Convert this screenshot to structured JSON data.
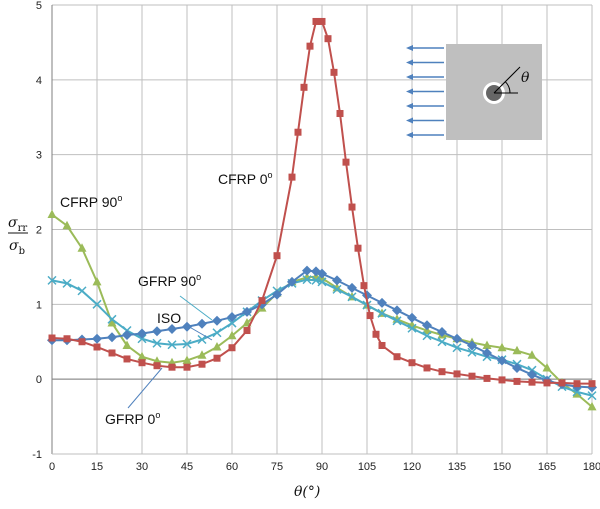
{
  "chart_data": {
    "type": "line",
    "xlabel": "θ(°)",
    "ylabel": "σrr / σb",
    "ylabel_num": "σ",
    "ylabel_num_sub": "rr",
    "ylabel_den": "σ",
    "ylabel_den_sub": "b",
    "xlim": [
      0,
      180
    ],
    "ylim": [
      -1,
      5
    ],
    "xticks": [
      "0",
      "15",
      "30",
      "45",
      "60",
      "75",
      "90",
      "105",
      "120",
      "135",
      "150",
      "165",
      "180"
    ],
    "yticks": [
      "-1",
      "0",
      "1",
      "2",
      "3",
      "4",
      "5"
    ],
    "grid": true,
    "inset": {
      "angle_label": "θ"
    },
    "series": [
      {
        "name": "CFRP 0o",
        "label_text": "CFRP 0",
        "label_sup": "o",
        "color": "#c0504d",
        "marker": "square",
        "x": [
          0,
          5,
          10,
          15,
          20,
          25,
          30,
          35,
          40,
          45,
          50,
          55,
          60,
          65,
          70,
          75,
          80,
          82,
          84,
          86,
          88,
          90,
          92,
          94,
          96,
          98,
          100,
          102,
          104,
          106,
          108,
          110,
          115,
          120,
          125,
          130,
          135,
          140,
          145,
          150,
          155,
          160,
          165,
          170,
          175,
          180
        ],
        "y": [
          0.55,
          0.54,
          0.5,
          0.43,
          0.35,
          0.27,
          0.22,
          0.18,
          0.16,
          0.16,
          0.2,
          0.28,
          0.42,
          0.65,
          1.05,
          1.65,
          2.7,
          3.3,
          3.9,
          4.45,
          4.78,
          4.78,
          4.55,
          4.1,
          3.55,
          2.9,
          2.3,
          1.75,
          1.25,
          0.85,
          0.6,
          0.45,
          0.3,
          0.22,
          0.15,
          0.1,
          0.07,
          0.04,
          0.01,
          -0.01,
          -0.03,
          -0.04,
          -0.05,
          -0.05,
          -0.06,
          -0.06
        ]
      },
      {
        "name": "CFRP 90o",
        "label_text": "CFRP 90",
        "label_sup": "o",
        "color": "#9bbb59",
        "marker": "triangle",
        "x": [
          0,
          5,
          10,
          15,
          20,
          25,
          30,
          35,
          40,
          45,
          50,
          55,
          60,
          65,
          70,
          75,
          80,
          85,
          88,
          90,
          95,
          100,
          105,
          110,
          115,
          120,
          125,
          130,
          135,
          140,
          145,
          150,
          155,
          160,
          165,
          170,
          175,
          180
        ],
        "y": [
          2.2,
          2.05,
          1.75,
          1.3,
          0.75,
          0.45,
          0.3,
          0.24,
          0.22,
          0.25,
          0.32,
          0.43,
          0.58,
          0.75,
          0.95,
          1.15,
          1.3,
          1.36,
          1.37,
          1.35,
          1.22,
          1.1,
          0.99,
          0.88,
          0.8,
          0.72,
          0.65,
          0.59,
          0.54,
          0.49,
          0.45,
          0.42,
          0.38,
          0.32,
          0.15,
          -0.05,
          -0.2,
          -0.37
        ]
      },
      {
        "name": "GFRP 90o",
        "label_text": "GFRP 90",
        "label_sup": "o",
        "color": "#4bacc6",
        "marker": "x",
        "x": [
          0,
          5,
          10,
          15,
          20,
          25,
          30,
          35,
          40,
          45,
          50,
          55,
          60,
          65,
          70,
          75,
          80,
          85,
          88,
          90,
          95,
          100,
          105,
          110,
          115,
          120,
          125,
          130,
          135,
          140,
          145,
          150,
          155,
          160,
          165,
          170,
          175,
          180
        ],
        "y": [
          1.32,
          1.28,
          1.18,
          1.0,
          0.8,
          0.65,
          0.54,
          0.48,
          0.46,
          0.47,
          0.53,
          0.62,
          0.75,
          0.9,
          1.05,
          1.18,
          1.28,
          1.33,
          1.32,
          1.3,
          1.2,
          1.1,
          0.99,
          0.88,
          0.78,
          0.68,
          0.58,
          0.5,
          0.42,
          0.36,
          0.3,
          0.26,
          0.2,
          0.12,
          0.0,
          -0.1,
          -0.17,
          -0.22
        ]
      },
      {
        "name": "ISO",
        "label_text": "ISO",
        "label_sup": "",
        "color": "#4f81bd",
        "marker": "diamond",
        "x": [
          0,
          5,
          10,
          15,
          20,
          25,
          30,
          35,
          40,
          45,
          50,
          55,
          60,
          65,
          70,
          75,
          80,
          85,
          88,
          90,
          95,
          100,
          105,
          110,
          115,
          120,
          125,
          130,
          135,
          140,
          145,
          150,
          155,
          160,
          165,
          170,
          175,
          180
        ],
        "y": [
          0.52,
          0.52,
          0.53,
          0.54,
          0.56,
          0.59,
          0.61,
          0.64,
          0.67,
          0.7,
          0.74,
          0.78,
          0.83,
          0.9,
          1.0,
          1.13,
          1.3,
          1.45,
          1.44,
          1.41,
          1.32,
          1.22,
          1.12,
          1.02,
          0.92,
          0.82,
          0.72,
          0.63,
          0.54,
          0.45,
          0.35,
          0.25,
          0.15,
          0.06,
          -0.02,
          -0.07,
          -0.1,
          -0.11
        ]
      }
    ],
    "annotations": [
      {
        "text": "GFRP 0",
        "sup": "o"
      }
    ]
  }
}
